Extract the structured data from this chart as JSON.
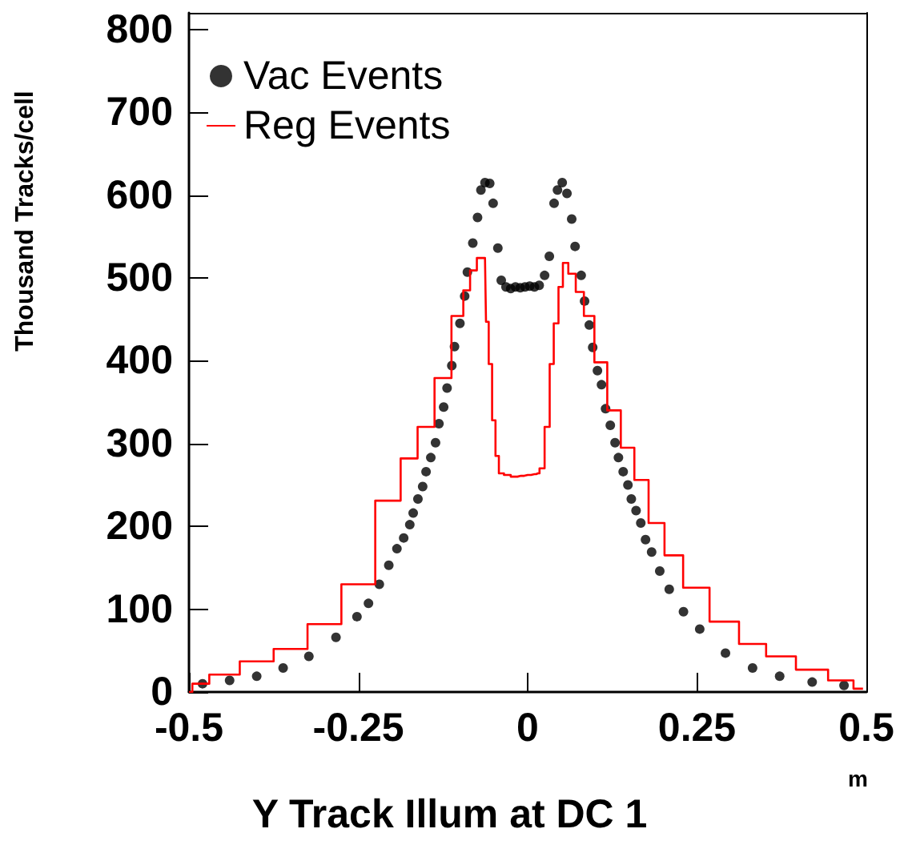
{
  "chart_data": {
    "type": "scatter",
    "xlabel": "Y Track Illum at DC 1",
    "ylabel": "Thousand Tracks/cell",
    "annotations": [
      "m"
    ],
    "xlim": [
      -0.5,
      0.5
    ],
    "xticks": [
      -0.5,
      -0.25,
      0,
      0.25,
      0.5
    ],
    "ylim": [
      0,
      820
    ],
    "yticks": [
      0,
      100,
      200,
      300,
      400,
      500,
      600,
      700,
      800
    ],
    "grid": false,
    "legend": "top left",
    "marker": "circle",
    "series": [
      {
        "name": "Vac Events",
        "color": "#000000",
        "x": [
          -0.48,
          -0.44,
          -0.4,
          -0.361,
          -0.323,
          -0.283,
          -0.252,
          -0.235,
          -0.219,
          -0.205,
          -0.193,
          -0.183,
          -0.174,
          -0.169,
          -0.162,
          -0.155,
          -0.15,
          -0.143,
          -0.136,
          -0.131,
          -0.124,
          -0.119,
          -0.112,
          -0.108,
          -0.1,
          -0.093,
          -0.089,
          -0.081,
          -0.074,
          -0.069,
          -0.063,
          -0.056,
          -0.051,
          -0.044,
          -0.039,
          -0.032,
          -0.025,
          -0.018,
          -0.011,
          -0.004,
          0.003,
          0.01,
          0.017,
          0.025,
          0.032,
          0.039,
          0.044,
          0.051,
          0.058,
          0.065,
          0.07,
          0.079,
          0.084,
          0.091,
          0.096,
          0.103,
          0.109,
          0.115,
          0.122,
          0.129,
          0.134,
          0.141,
          0.148,
          0.153,
          0.16,
          0.167,
          0.174,
          0.183,
          0.195,
          0.209,
          0.23,
          0.254,
          0.292,
          0.332,
          0.372,
          0.42,
          0.467
        ],
        "values": [
          10,
          14,
          19,
          29,
          43,
          66,
          91,
          107,
          130,
          153,
          173,
          186,
          202,
          216,
          233,
          248,
          266,
          283,
          301,
          324,
          344,
          367,
          394,
          417,
          445,
          478,
          507,
          542,
          573,
          606,
          615,
          614,
          590,
          536,
          497,
          489,
          487,
          489,
          488,
          489,
          490,
          489,
          491,
          503,
          526,
          590,
          606,
          615,
          602,
          571,
          538,
          503,
          472,
          443,
          416,
          388,
          371,
          342,
          322,
          301,
          283,
          266,
          250,
          233,
          219,
          204,
          184,
          169,
          146,
          124,
          97,
          76,
          47,
          29,
          19,
          12,
          8
        ]
      },
      {
        "name": "Reg Events",
        "type": "step",
        "marker": "none",
        "color": "#ff0000",
        "x": [
          -0.5,
          -0.49,
          -0.45,
          -0.4,
          -0.35,
          -0.3,
          -0.25,
          -0.2,
          -0.175,
          -0.15,
          -0.125,
          -0.1,
          -0.09,
          -0.08,
          -0.07,
          -0.063,
          -0.06,
          -0.055,
          -0.05,
          -0.045,
          -0.04,
          -0.03,
          -0.02,
          -0.01,
          0,
          0.01,
          0.015,
          0.02,
          0.03,
          0.035,
          0.042,
          0.049,
          0.055,
          0.065,
          0.077,
          0.089,
          0.108,
          0.127,
          0.148,
          0.167,
          0.19,
          0.214,
          0.245,
          0.292,
          0.332,
          0.372,
          0.42,
          0.467,
          0.495
        ],
        "values": [
          0,
          10,
          21,
          37,
          52,
          82,
          130,
          231,
          282,
          320,
          379,
          454,
          485,
          509,
          524,
          524,
          447,
          396,
          328,
          285,
          264,
          262,
          260,
          261,
          262,
          263,
          264,
          270,
          320,
          396,
          445,
          489,
          518,
          505,
          483,
          454,
          398,
          340,
          295,
          256,
          204,
          165,
          126,
          85,
          58,
          43,
          27,
          14,
          4
        ]
      }
    ]
  }
}
